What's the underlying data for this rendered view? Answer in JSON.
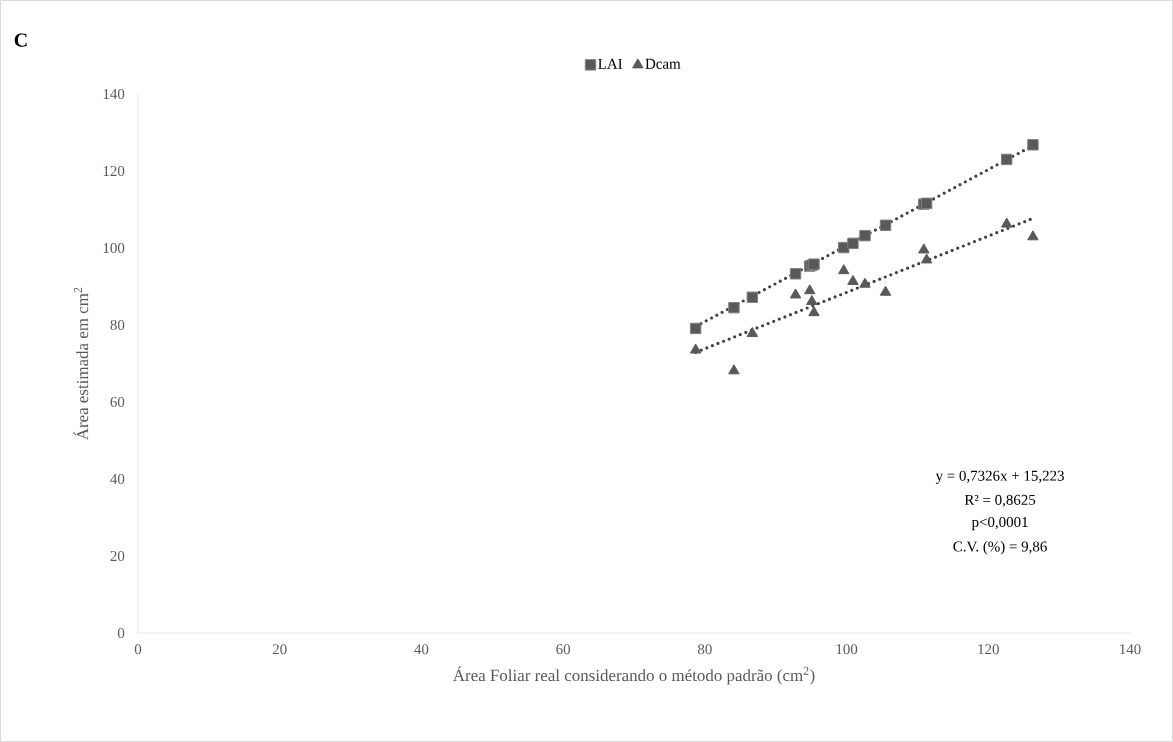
{
  "chart_data": {
    "type": "scatter",
    "xlabel": "Área Foliar real considerando o método padrão (cm$^{2}$)",
    "ylabel": "Área estimada em cm$^{2}$",
    "annotations": [
      "C",
      "y = 0,7326x + 15,223",
      "R² = 0,8625",
      "p<0,0001",
      "C.V. (%) = 9,86"
    ],
    "xlim": [
      0,
      140
    ],
    "ylim": [
      0,
      140
    ],
    "xticks": [
      0,
      20,
      40,
      60,
      80,
      100,
      120,
      140
    ],
    "yticks": [
      0,
      20,
      40,
      60,
      80,
      100,
      120,
      140
    ],
    "grid": false,
    "legend": "top",
    "series": [
      {
        "name": "LAI",
        "marker": "square",
        "color": "#595959",
        "x": [
          78.7,
          84.1,
          86.7,
          92.8,
          94.8,
          95.1,
          95.4,
          99.6,
          100.9,
          102.6,
          105.5,
          110.9,
          111.3,
          122.6,
          126.3
        ],
        "values": [
          79.1,
          84.5,
          87.2,
          93.3,
          95.3,
          95.5,
          95.8,
          100.1,
          101.2,
          103.2,
          105.9,
          111.4,
          111.6,
          123.0,
          126.8
        ]
      },
      {
        "name": "Dcam",
        "marker": "triangle",
        "color": "#595959",
        "x": [
          78.7,
          84.1,
          86.7,
          92.8,
          94.8,
          95.1,
          95.4,
          99.6,
          100.9,
          102.6,
          105.5,
          110.9,
          111.3,
          122.6,
          126.3
        ],
        "values": [
          73.5,
          68.1,
          77.8,
          87.8,
          88.9,
          86.1,
          83.2,
          94.1,
          91.3,
          90.6,
          88.5,
          99.5,
          96.9,
          106.2,
          102.9
        ]
      },
      {
        "type": "line",
        "line_style": "dotted",
        "color": "#404040",
        "x": [
          78.7,
          126.3
        ],
        "values": [
          79.6,
          126.6
        ]
      },
      {
        "type": "line",
        "line_style": "dotted",
        "color": "#404040",
        "x": [
          78.7,
          126.3
        ],
        "values": [
          72.9,
          107.7
        ]
      }
    ]
  }
}
